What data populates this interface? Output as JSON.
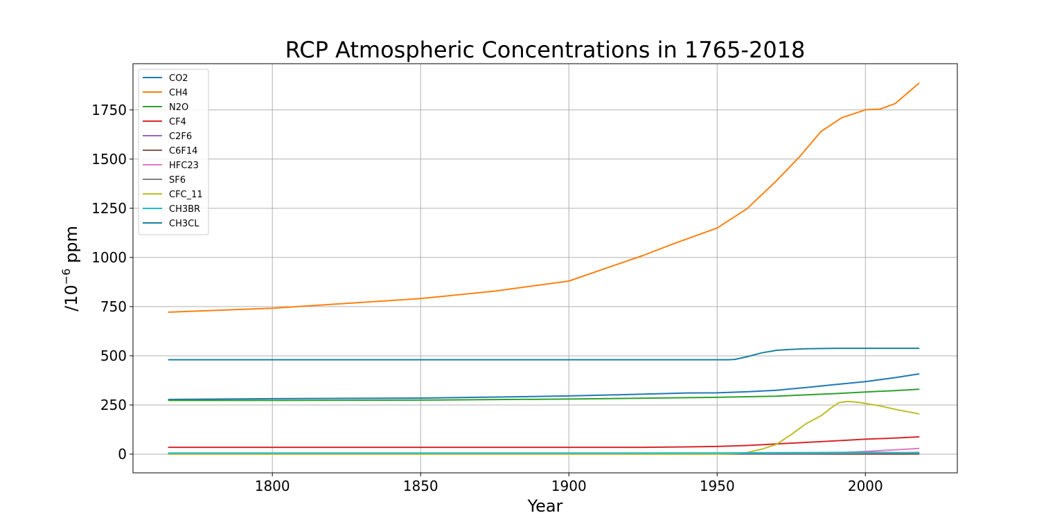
{
  "chart_data": {
    "type": "line",
    "title": "RCP Atmospheric Concentrations in 1765-2018",
    "xlabel": "Year",
    "ylabel_prefix": "/10",
    "ylabel_exp": "−6",
    "ylabel_unit": " ppm",
    "xlim": [
      1753,
      2031
    ],
    "ylim": [
      -95,
      1985
    ],
    "xticks": [
      1800,
      1850,
      1900,
      1950,
      2000
    ],
    "yticks": [
      0,
      250,
      500,
      750,
      1000,
      1250,
      1500,
      1750
    ],
    "grid": true,
    "legend_position": "upper left",
    "series": [
      {
        "name": "CO2",
        "color": "#1f77b4",
        "x": [
          1765,
          1800,
          1850,
          1880,
          1900,
          1920,
          1940,
          1950,
          1960,
          1970,
          1980,
          1990,
          2000,
          2010,
          2018
        ],
        "y": [
          278,
          282,
          285,
          291,
          296,
          303,
          311,
          312,
          317,
          325,
          339,
          354,
          369,
          389,
          408
        ]
      },
      {
        "name": "CH4",
        "color": "#ff7f0e",
        "x": [
          1765,
          1800,
          1850,
          1875,
          1900,
          1925,
          1935,
          1950,
          1960,
          1970,
          1978,
          1985,
          1992,
          1998,
          2000,
          2005,
          2010,
          2018
        ],
        "y": [
          722,
          742,
          791,
          829,
          880,
          1010,
          1068,
          1150,
          1247,
          1390,
          1515,
          1640,
          1710,
          1740,
          1751,
          1754,
          1782,
          1885
        ]
      },
      {
        "name": "N2O",
        "color": "#2ca02c",
        "x": [
          1765,
          1800,
          1850,
          1900,
          1950,
          1970,
          1990,
          2000,
          2010,
          2018
        ],
        "y": [
          273,
          273,
          275,
          280,
          289,
          295,
          308,
          316,
          323,
          330
        ]
      },
      {
        "name": "CF4",
        "color": "#d62728",
        "x": [
          1765,
          1800,
          1900,
          1925,
          1940,
          1950,
          1960,
          1970,
          1980,
          1990,
          2000,
          2010,
          2018
        ],
        "y": [
          35,
          35,
          35,
          35,
          37,
          39,
          44,
          52,
          60,
          68,
          76,
          82,
          88
        ]
      },
      {
        "name": "C2F6",
        "color": "#9467bd",
        "x": [
          1765,
          1950,
          1970,
          1990,
          2000,
          2018
        ],
        "y": [
          0,
          0,
          0.5,
          2,
          3,
          4.5
        ]
      },
      {
        "name": "C6F14",
        "color": "#8c564b",
        "x": [
          1765,
          1970,
          2000,
          2018
        ],
        "y": [
          0,
          0,
          0.2,
          0.3
        ]
      },
      {
        "name": "HFC23",
        "color": "#e377c2",
        "x": [
          1765,
          1960,
          1980,
          1990,
          2000,
          2010,
          2018
        ],
        "y": [
          0,
          0,
          2,
          6,
          14,
          22,
          29
        ]
      },
      {
        "name": "SF6",
        "color": "#7f7f7f",
        "x": [
          1765,
          1960,
          1980,
          2000,
          2018
        ],
        "y": [
          0,
          0,
          1,
          4,
          9
        ]
      },
      {
        "name": "CFC_11",
        "color": "#bcbd22",
        "x": [
          1765,
          1950,
          1955,
          1960,
          1965,
          1970,
          1975,
          1980,
          1985,
          1988,
          1991,
          1994,
          1997,
          2000,
          2005,
          2010,
          2018
        ],
        "y": [
          0,
          0,
          2,
          8,
          25,
          50,
          100,
          155,
          195,
          230,
          262,
          268,
          265,
          258,
          245,
          228,
          205
        ]
      },
      {
        "name": "CH3BR",
        "color": "#17becf",
        "x": [
          1765,
          1950,
          1980,
          1998,
          2018
        ],
        "y": [
          5.8,
          6,
          8,
          9.5,
          7
        ]
      },
      {
        "name": "CH3CL",
        "color": "#1a7fa0",
        "x": [
          1765,
          1954,
          1956,
          1960,
          1965,
          1970,
          1975,
          1980,
          1990,
          2000,
          2018
        ],
        "y": [
          480,
          480,
          482,
          495,
          515,
          528,
          533,
          536,
          538,
          538,
          538
        ]
      }
    ]
  }
}
